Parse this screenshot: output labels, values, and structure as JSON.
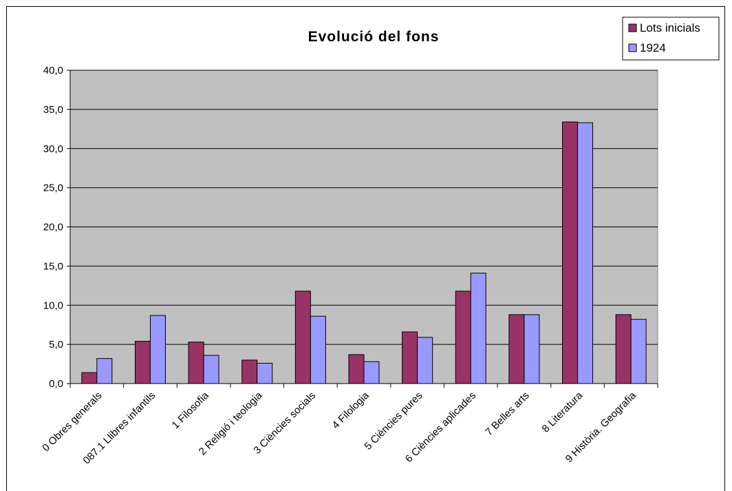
{
  "chart_data": {
    "type": "bar",
    "title": "Evolució del fons",
    "xlabel": "",
    "ylabel": "",
    "ylim": [
      0,
      40
    ],
    "yticks": [
      "0,0",
      "5,0",
      "10,0",
      "15,0",
      "20,0",
      "25,0",
      "30,0",
      "35,0",
      "40,0"
    ],
    "grid": true,
    "legend_position": "top-right",
    "categories": [
      "0 Obres generals",
      "087.1 Llibres infantils",
      "1 Filosofia",
      "2 Religió i teologia",
      "3 Ciències socials",
      "4 Filologia",
      "5 Ciències pures",
      "6 Ciències aplicades",
      "7 Belles arts",
      "8 Literatura",
      "9 Història. Geografia"
    ],
    "series": [
      {
        "name": "Lots inicials",
        "color": "#993366",
        "values": [
          1.4,
          5.4,
          5.3,
          3.0,
          11.8,
          3.7,
          6.6,
          11.8,
          8.8,
          33.4,
          8.8
        ]
      },
      {
        "name": "1924",
        "color": "#9999ff",
        "values": [
          3.2,
          8.7,
          3.6,
          2.6,
          8.6,
          2.8,
          5.9,
          14.1,
          8.8,
          33.3,
          8.2
        ]
      }
    ],
    "plot_background": "#c0c0c0"
  }
}
